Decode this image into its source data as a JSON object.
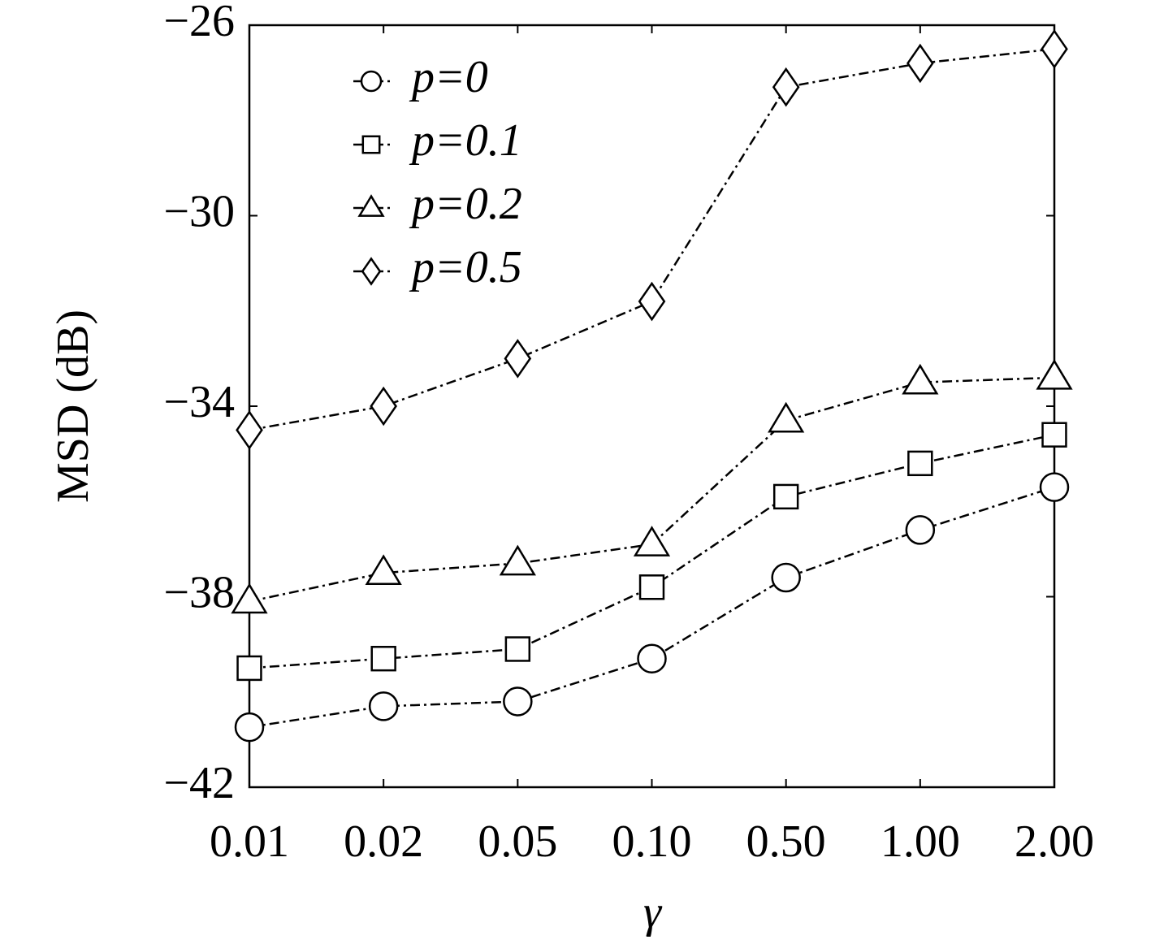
{
  "chart_data": {
    "type": "line",
    "x_label": "γ",
    "y_label": "MSD (dB)",
    "categories": [
      "0.01",
      "0.02",
      "0.05",
      "0.10",
      "0.50",
      "1.00",
      "2.00"
    ],
    "ylim": [
      -42,
      -26
    ],
    "yticks": [
      {
        "value": -42,
        "label": "−42"
      },
      {
        "value": -38,
        "label": "−38"
      },
      {
        "value": -34,
        "label": "−34"
      },
      {
        "value": -30,
        "label": "−30"
      },
      {
        "value": -26,
        "label": "−26"
      }
    ],
    "legend": "upper left",
    "linestyle": "dashdot",
    "series": [
      {
        "name": "p=0",
        "color": "#000000",
        "marker": "circle",
        "values": [
          -40.74,
          -40.3,
          -40.2,
          -39.3,
          -37.6,
          -36.6,
          -35.7
        ]
      },
      {
        "name": "p=0.1",
        "color": "#000000",
        "marker": "square",
        "values": [
          -39.5,
          -39.3,
          -39.1,
          -37.8,
          -35.9,
          -35.2,
          -34.6
        ]
      },
      {
        "name": "p=0.2",
        "color": "#000000",
        "marker": "triangle",
        "values": [
          -38.1,
          -37.5,
          -37.3,
          -36.9,
          -34.3,
          -33.5,
          -33.4
        ]
      },
      {
        "name": "p=0.5",
        "color": "#000000",
        "marker": "diamond",
        "values": [
          -34.5,
          -34.0,
          -33.0,
          -31.8,
          -27.3,
          -26.8,
          -26.5
        ]
      }
    ]
  }
}
